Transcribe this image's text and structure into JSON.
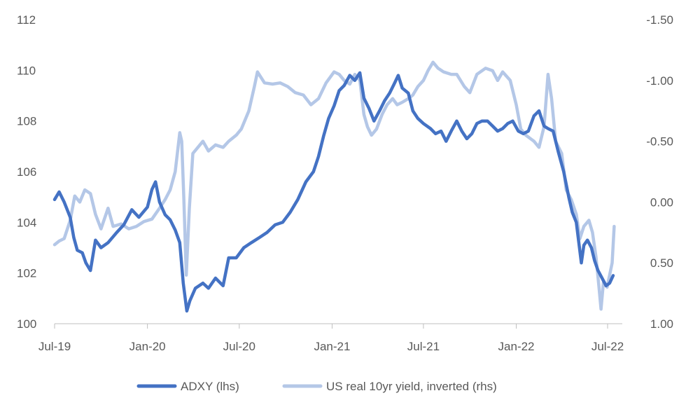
{
  "chart_data": {
    "type": "line",
    "x_ticks": [
      "Jul-19",
      "Jan-20",
      "Jul-20",
      "Jan-21",
      "Jul-21",
      "Jan-22",
      "Jul-22"
    ],
    "y_left": {
      "ticks": [
        "100",
        "102",
        "104",
        "106",
        "108",
        "110",
        "112"
      ],
      "ylim": [
        100,
        112
      ]
    },
    "y_right": {
      "ticks": [
        "1.00",
        "0.50",
        "0.00",
        "-0.50",
        "-1.00",
        "-1.50"
      ],
      "ylim": [
        1.0,
        -1.5
      ],
      "inverted": true
    },
    "grid": false,
    "legend_position": "bottom",
    "series": [
      {
        "name": "ADXY (lhs)",
        "axis": "left",
        "color": "#4472C4",
        "points": [
          [
            "2019-07-01",
            104.9
          ],
          [
            "2019-07-10",
            105.2
          ],
          [
            "2019-07-20",
            104.8
          ],
          [
            "2019-08-01",
            104.2
          ],
          [
            "2019-08-08",
            103.4
          ],
          [
            "2019-08-15",
            102.9
          ],
          [
            "2019-08-25",
            102.8
          ],
          [
            "2019-09-01",
            102.4
          ],
          [
            "2019-09-10",
            102.1
          ],
          [
            "2019-09-20",
            103.3
          ],
          [
            "2019-10-01",
            103.0
          ],
          [
            "2019-10-15",
            103.2
          ],
          [
            "2019-11-01",
            103.6
          ],
          [
            "2019-11-15",
            103.9
          ],
          [
            "2019-12-01",
            104.5
          ],
          [
            "2019-12-15",
            104.2
          ],
          [
            "2020-01-01",
            104.6
          ],
          [
            "2020-01-10",
            105.3
          ],
          [
            "2020-01-17",
            105.6
          ],
          [
            "2020-01-25",
            104.8
          ],
          [
            "2020-02-05",
            104.3
          ],
          [
            "2020-02-15",
            104.1
          ],
          [
            "2020-02-25",
            103.7
          ],
          [
            "2020-03-05",
            103.2
          ],
          [
            "2020-03-12",
            101.6
          ],
          [
            "2020-03-19",
            100.5
          ],
          [
            "2020-03-25",
            100.9
          ],
          [
            "2020-04-05",
            101.4
          ],
          [
            "2020-04-20",
            101.6
          ],
          [
            "2020-05-01",
            101.4
          ],
          [
            "2020-05-15",
            101.8
          ],
          [
            "2020-05-30",
            101.5
          ],
          [
            "2020-06-10",
            102.6
          ],
          [
            "2020-06-25",
            102.6
          ],
          [
            "2020-07-10",
            103.0
          ],
          [
            "2020-07-25",
            103.2
          ],
          [
            "2020-08-10",
            103.4
          ],
          [
            "2020-08-25",
            103.6
          ],
          [
            "2020-09-10",
            103.9
          ],
          [
            "2020-09-25",
            104.0
          ],
          [
            "2020-10-10",
            104.4
          ],
          [
            "2020-10-25",
            104.9
          ],
          [
            "2020-11-10",
            105.6
          ],
          [
            "2020-11-25",
            106.0
          ],
          [
            "2020-12-05",
            106.6
          ],
          [
            "2020-12-15",
            107.4
          ],
          [
            "2020-12-25",
            108.1
          ],
          [
            "2021-01-05",
            108.6
          ],
          [
            "2021-01-15",
            109.2
          ],
          [
            "2021-01-25",
            109.4
          ],
          [
            "2021-02-05",
            109.8
          ],
          [
            "2021-02-15",
            109.6
          ],
          [
            "2021-02-25",
            109.9
          ],
          [
            "2021-03-05",
            108.9
          ],
          [
            "2021-03-15",
            108.5
          ],
          [
            "2021-03-25",
            108.0
          ],
          [
            "2021-04-05",
            108.4
          ],
          [
            "2021-04-15",
            108.8
          ],
          [
            "2021-04-25",
            109.1
          ],
          [
            "2021-05-05",
            109.5
          ],
          [
            "2021-05-12",
            109.8
          ],
          [
            "2021-05-20",
            109.3
          ],
          [
            "2021-06-01",
            109.1
          ],
          [
            "2021-06-10",
            108.4
          ],
          [
            "2021-06-20",
            108.1
          ],
          [
            "2021-07-01",
            107.9
          ],
          [
            "2021-07-15",
            107.7
          ],
          [
            "2021-07-25",
            107.5
          ],
          [
            "2021-08-05",
            107.6
          ],
          [
            "2021-08-15",
            107.2
          ],
          [
            "2021-08-25",
            107.6
          ],
          [
            "2021-09-05",
            108.0
          ],
          [
            "2021-09-15",
            107.6
          ],
          [
            "2021-09-25",
            107.3
          ],
          [
            "2021-10-05",
            107.5
          ],
          [
            "2021-10-15",
            107.9
          ],
          [
            "2021-10-25",
            108.0
          ],
          [
            "2021-11-05",
            108.0
          ],
          [
            "2021-11-15",
            107.8
          ],
          [
            "2021-11-25",
            107.6
          ],
          [
            "2021-12-05",
            107.7
          ],
          [
            "2021-12-15",
            107.9
          ],
          [
            "2021-12-25",
            108.0
          ],
          [
            "2022-01-05",
            107.6
          ],
          [
            "2022-01-15",
            107.5
          ],
          [
            "2022-01-25",
            107.6
          ],
          [
            "2022-02-05",
            108.2
          ],
          [
            "2022-02-15",
            108.4
          ],
          [
            "2022-02-25",
            107.8
          ],
          [
            "2022-03-05",
            107.7
          ],
          [
            "2022-03-15",
            107.6
          ],
          [
            "2022-03-25",
            106.8
          ],
          [
            "2022-04-05",
            106.0
          ],
          [
            "2022-04-15",
            105.0
          ],
          [
            "2022-04-22",
            104.4
          ],
          [
            "2022-04-30",
            104.0
          ],
          [
            "2022-05-05",
            103.2
          ],
          [
            "2022-05-10",
            102.4
          ],
          [
            "2022-05-15",
            103.1
          ],
          [
            "2022-05-22",
            103.3
          ],
          [
            "2022-05-30",
            103.0
          ],
          [
            "2022-06-05",
            102.5
          ],
          [
            "2022-06-12",
            102.1
          ],
          [
            "2022-06-20",
            101.8
          ],
          [
            "2022-06-28",
            101.5
          ],
          [
            "2022-07-05",
            101.6
          ],
          [
            "2022-07-12",
            101.9
          ]
        ]
      },
      {
        "name": "US real 10yr yield, inverted (rhs)",
        "axis": "right",
        "color": "#B4C7E7",
        "points": [
          [
            "2019-07-01",
            0.35
          ],
          [
            "2019-07-10",
            0.32
          ],
          [
            "2019-07-20",
            0.3
          ],
          [
            "2019-08-01",
            0.15
          ],
          [
            "2019-08-10",
            -0.05
          ],
          [
            "2019-08-20",
            0.0
          ],
          [
            "2019-08-30",
            -0.1
          ],
          [
            "2019-09-10",
            -0.07
          ],
          [
            "2019-09-20",
            0.1
          ],
          [
            "2019-10-01",
            0.22
          ],
          [
            "2019-10-15",
            0.05
          ],
          [
            "2019-10-25",
            0.2
          ],
          [
            "2019-11-10",
            0.18
          ],
          [
            "2019-11-25",
            0.22
          ],
          [
            "2019-12-10",
            0.2
          ],
          [
            "2019-12-25",
            0.16
          ],
          [
            "2020-01-10",
            0.14
          ],
          [
            "2020-01-25",
            0.05
          ],
          [
            "2020-02-05",
            -0.02
          ],
          [
            "2020-02-15",
            -0.1
          ],
          [
            "2020-02-25",
            -0.25
          ],
          [
            "2020-03-05",
            -0.57
          ],
          [
            "2020-03-09",
            -0.5
          ],
          [
            "2020-03-13",
            -0.05
          ],
          [
            "2020-03-18",
            0.6
          ],
          [
            "2020-03-24",
            0.05
          ],
          [
            "2020-03-31",
            -0.4
          ],
          [
            "2020-04-10",
            -0.45
          ],
          [
            "2020-04-20",
            -0.5
          ],
          [
            "2020-05-01",
            -0.42
          ],
          [
            "2020-05-15",
            -0.47
          ],
          [
            "2020-05-30",
            -0.45
          ],
          [
            "2020-06-10",
            -0.5
          ],
          [
            "2020-06-25",
            -0.55
          ],
          [
            "2020-07-05",
            -0.6
          ],
          [
            "2020-07-20",
            -0.75
          ],
          [
            "2020-07-31",
            -0.95
          ],
          [
            "2020-08-06",
            -1.07
          ],
          [
            "2020-08-20",
            -0.98
          ],
          [
            "2020-09-05",
            -0.97
          ],
          [
            "2020-09-20",
            -0.98
          ],
          [
            "2020-10-05",
            -0.95
          ],
          [
            "2020-10-20",
            -0.9
          ],
          [
            "2020-11-05",
            -0.88
          ],
          [
            "2020-11-20",
            -0.8
          ],
          [
            "2020-12-05",
            -0.85
          ],
          [
            "2020-12-20",
            -0.98
          ],
          [
            "2021-01-05",
            -1.07
          ],
          [
            "2021-01-15",
            -1.05
          ],
          [
            "2021-01-25",
            -1.0
          ],
          [
            "2021-02-05",
            -0.97
          ],
          [
            "2021-02-15",
            -1.05
          ],
          [
            "2021-02-25",
            -1.0
          ],
          [
            "2021-03-05",
            -0.72
          ],
          [
            "2021-03-12",
            -0.62
          ],
          [
            "2021-03-20",
            -0.55
          ],
          [
            "2021-03-30",
            -0.6
          ],
          [
            "2021-04-10",
            -0.72
          ],
          [
            "2021-04-20",
            -0.8
          ],
          [
            "2021-05-01",
            -0.85
          ],
          [
            "2021-05-10",
            -0.8
          ],
          [
            "2021-05-20",
            -0.82
          ],
          [
            "2021-06-01",
            -0.85
          ],
          [
            "2021-06-10",
            -0.88
          ],
          [
            "2021-06-20",
            -0.95
          ],
          [
            "2021-07-01",
            -1.0
          ],
          [
            "2021-07-10",
            -1.08
          ],
          [
            "2021-07-20",
            -1.15
          ],
          [
            "2021-07-30",
            -1.1
          ],
          [
            "2021-08-10",
            -1.07
          ],
          [
            "2021-08-25",
            -1.05
          ],
          [
            "2021-09-05",
            -1.05
          ],
          [
            "2021-09-20",
            -0.95
          ],
          [
            "2021-10-01",
            -0.9
          ],
          [
            "2021-10-15",
            -1.05
          ],
          [
            "2021-11-01",
            -1.1
          ],
          [
            "2021-11-15",
            -1.08
          ],
          [
            "2021-11-25",
            -1.0
          ],
          [
            "2021-12-05",
            -1.07
          ],
          [
            "2021-12-20",
            -1.0
          ],
          [
            "2022-01-01",
            -0.8
          ],
          [
            "2022-01-10",
            -0.6
          ],
          [
            "2022-01-20",
            -0.55
          ],
          [
            "2022-02-05",
            -0.5
          ],
          [
            "2022-02-15",
            -0.45
          ],
          [
            "2022-02-25",
            -0.62
          ],
          [
            "2022-03-05",
            -1.05
          ],
          [
            "2022-03-12",
            -0.85
          ],
          [
            "2022-03-20",
            -0.5
          ],
          [
            "2022-04-01",
            -0.4
          ],
          [
            "2022-04-10",
            -0.1
          ],
          [
            "2022-04-20",
            -0.02
          ],
          [
            "2022-04-30",
            0.1
          ],
          [
            "2022-05-07",
            0.3
          ],
          [
            "2022-05-15",
            0.2
          ],
          [
            "2022-05-25",
            0.15
          ],
          [
            "2022-06-01",
            0.25
          ],
          [
            "2022-06-08",
            0.45
          ],
          [
            "2022-06-14",
            0.7
          ],
          [
            "2022-06-18",
            0.88
          ],
          [
            "2022-06-23",
            0.65
          ],
          [
            "2022-06-30",
            0.7
          ],
          [
            "2022-07-05",
            0.6
          ],
          [
            "2022-07-10",
            0.5
          ],
          [
            "2022-07-14",
            0.2
          ]
        ]
      }
    ]
  }
}
